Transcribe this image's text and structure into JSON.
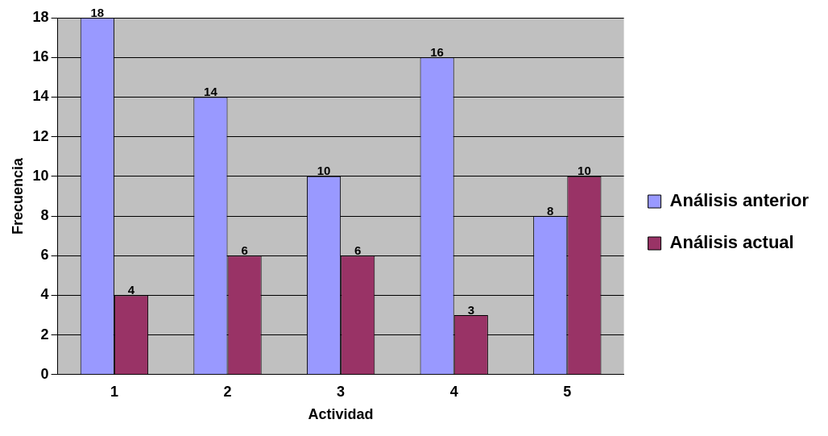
{
  "chart_data": {
    "type": "bar",
    "xlabel": "Actividad",
    "ylabel": "Frecuencia",
    "categories": [
      "1",
      "2",
      "3",
      "4",
      "5"
    ],
    "series": [
      {
        "name": "Análisis anterior",
        "color": "#9999ff",
        "values": [
          18,
          14,
          10,
          16,
          8
        ]
      },
      {
        "name": "Análisis actual",
        "color": "#993366",
        "values": [
          4,
          6,
          6,
          3,
          10
        ]
      }
    ],
    "ylim": [
      0,
      18
    ],
    "yticks": [
      0,
      2,
      4,
      6,
      8,
      10,
      12,
      14,
      16,
      18
    ],
    "grid": "y",
    "legend": "right",
    "data_labels": true
  }
}
